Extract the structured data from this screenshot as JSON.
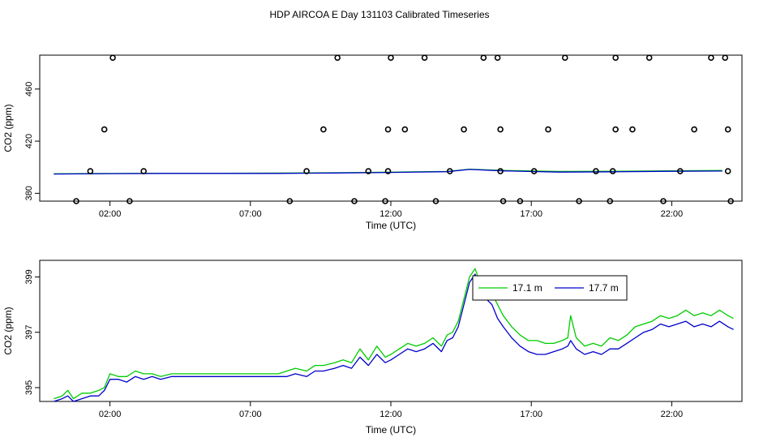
{
  "figure": {
    "title": "HDP AIRCOA E  Day 131103  Calibrated Timeseries"
  },
  "chart_data": [
    {
      "type": "line",
      "panel": "top",
      "xlabel": "Time (UTC)",
      "ylabel": "CO2 (ppm)",
      "x_ticks": [
        "02:00",
        "07:00",
        "12:00",
        "17:00",
        "22:00"
      ],
      "x_tick_hours": [
        2,
        7,
        12,
        17,
        22
      ],
      "y_ticks": [
        380,
        420,
        460
      ],
      "xlim": [
        -0.5,
        24.5
      ],
      "ylim": [
        374,
        486
      ],
      "grid": false,
      "series": [
        {
          "color": "#00cc00",
          "points": [
            [
              0,
              395
            ],
            [
              2,
              395.2
            ],
            [
              4,
              395.4
            ],
            [
              6,
              395.4
            ],
            [
              8,
              395.5
            ],
            [
              10,
              395.8
            ],
            [
              12,
              396.2
            ],
            [
              14,
              396.8
            ],
            [
              14.8,
              398.5
            ],
            [
              16,
              397.5
            ],
            [
              18,
              396.8
            ],
            [
              20,
              396.9
            ],
            [
              22,
              397.2
            ],
            [
              23.8,
              397.5
            ]
          ]
        },
        {
          "color": "#0000cc",
          "points": [
            [
              0,
              394.8
            ],
            [
              2,
              395.1
            ],
            [
              4,
              395.3
            ],
            [
              6,
              395.3
            ],
            [
              8,
              395.3
            ],
            [
              10,
              395.6
            ],
            [
              12,
              396.0
            ],
            [
              14,
              396.6
            ],
            [
              14.8,
              398.3
            ],
            [
              16,
              397.2
            ],
            [
              18,
              396.3
            ],
            [
              20,
              396.5
            ],
            [
              22,
              396.9
            ],
            [
              23.8,
              397.1
            ]
          ]
        },
        {
          "kind": "markers",
          "color": "#000000",
          "points": [
            [
              0.8,
              374
            ],
            [
              1.3,
              397
            ],
            [
              1.8,
              429
            ],
            [
              2.1,
              484
            ],
            [
              2.7,
              374
            ],
            [
              3.2,
              397
            ],
            [
              8.4,
              374
            ],
            [
              9.0,
              397
            ],
            [
              9.6,
              429
            ],
            [
              10.1,
              484
            ],
            [
              10.7,
              374
            ],
            [
              11.2,
              397
            ],
            [
              11.8,
              374
            ],
            [
              11.9,
              397
            ],
            [
              11.9,
              429
            ],
            [
              12.0,
              484
            ],
            [
              12.5,
              429
            ],
            [
              13.2,
              484
            ],
            [
              13.6,
              374
            ],
            [
              14.1,
              397
            ],
            [
              14.6,
              429
            ],
            [
              15.3,
              484
            ],
            [
              15.8,
              484
            ],
            [
              15.9,
              429
            ],
            [
              15.9,
              397
            ],
            [
              16.0,
              374
            ],
            [
              16.6,
              374
            ],
            [
              17.1,
              397
            ],
            [
              17.6,
              429
            ],
            [
              18.2,
              484
            ],
            [
              18.7,
              374
            ],
            [
              19.3,
              397
            ],
            [
              19.8,
              374
            ],
            [
              19.9,
              397
            ],
            [
              20.0,
              429
            ],
            [
              20.0,
              484
            ],
            [
              20.6,
              429
            ],
            [
              21.2,
              484
            ],
            [
              21.7,
              374
            ],
            [
              22.3,
              397
            ],
            [
              22.8,
              429
            ],
            [
              23.4,
              484
            ],
            [
              23.9,
              484
            ],
            [
              24.0,
              429
            ],
            [
              24.0,
              397
            ],
            [
              24.1,
              374
            ]
          ]
        }
      ]
    },
    {
      "type": "line",
      "panel": "bottom",
      "xlabel": "Time (UTC)",
      "ylabel": "CO2 (ppm)",
      "x_ticks": [
        "02:00",
        "07:00",
        "12:00",
        "17:00",
        "22:00"
      ],
      "x_tick_hours": [
        2,
        7,
        12,
        17,
        22
      ],
      "y_ticks": [
        395,
        397,
        399
      ],
      "xlim": [
        -0.5,
        24.5
      ],
      "ylim": [
        394.5,
        399.6
      ],
      "grid": false,
      "legend": {
        "placement": "top-right",
        "entries": [
          "17.1 m",
          "17.7 m"
        ]
      },
      "series": [
        {
          "name": "17.1 m",
          "color": "#00cc00",
          "points": [
            [
              0.0,
              394.6
            ],
            [
              0.3,
              394.7
            ],
            [
              0.5,
              394.9
            ],
            [
              0.7,
              394.6
            ],
            [
              1.0,
              394.8
            ],
            [
              1.3,
              394.8
            ],
            [
              1.6,
              394.9
            ],
            [
              1.8,
              395.0
            ],
            [
              2.0,
              395.5
            ],
            [
              2.3,
              395.4
            ],
            [
              2.6,
              395.4
            ],
            [
              2.9,
              395.6
            ],
            [
              3.2,
              395.5
            ],
            [
              3.5,
              395.5
            ],
            [
              3.8,
              395.4
            ],
            [
              4.2,
              395.5
            ],
            [
              6.0,
              395.5
            ],
            [
              8.0,
              395.5
            ],
            [
              8.3,
              395.6
            ],
            [
              8.6,
              395.7
            ],
            [
              9.0,
              395.6
            ],
            [
              9.3,
              395.8
            ],
            [
              9.6,
              395.8
            ],
            [
              10.0,
              395.9
            ],
            [
              10.3,
              396.0
            ],
            [
              10.6,
              395.9
            ],
            [
              10.9,
              396.4
            ],
            [
              11.2,
              396.0
            ],
            [
              11.5,
              396.5
            ],
            [
              11.8,
              396.1
            ],
            [
              12.0,
              396.2
            ],
            [
              12.3,
              396.4
            ],
            [
              12.6,
              396.6
            ],
            [
              12.9,
              396.5
            ],
            [
              13.2,
              396.6
            ],
            [
              13.5,
              396.8
            ],
            [
              13.8,
              396.5
            ],
            [
              14.0,
              396.9
            ],
            [
              14.2,
              397.0
            ],
            [
              14.4,
              397.4
            ],
            [
              14.6,
              398.2
            ],
            [
              14.8,
              399.0
            ],
            [
              15.0,
              399.3
            ],
            [
              15.2,
              398.7
            ],
            [
              15.4,
              398.6
            ],
            [
              15.6,
              398.4
            ],
            [
              15.8,
              398.0
            ],
            [
              16.0,
              397.6
            ],
            [
              16.3,
              397.2
            ],
            [
              16.6,
              396.9
            ],
            [
              16.9,
              396.7
            ],
            [
              17.2,
              396.7
            ],
            [
              17.5,
              396.6
            ],
            [
              17.8,
              396.6
            ],
            [
              18.1,
              396.7
            ],
            [
              18.3,
              396.8
            ],
            [
              18.4,
              397.6
            ],
            [
              18.6,
              396.8
            ],
            [
              18.9,
              396.5
            ],
            [
              19.2,
              396.6
            ],
            [
              19.5,
              396.5
            ],
            [
              19.8,
              396.8
            ],
            [
              20.1,
              396.7
            ],
            [
              20.4,
              396.9
            ],
            [
              20.7,
              397.2
            ],
            [
              21.0,
              397.3
            ],
            [
              21.3,
              397.4
            ],
            [
              21.6,
              397.6
            ],
            [
              21.9,
              397.5
            ],
            [
              22.2,
              397.6
            ],
            [
              22.5,
              397.8
            ],
            [
              22.8,
              397.6
            ],
            [
              23.1,
              397.7
            ],
            [
              23.4,
              397.6
            ],
            [
              23.7,
              397.8
            ],
            [
              24.0,
              397.6
            ],
            [
              24.2,
              397.5
            ]
          ]
        },
        {
          "name": "17.7 m",
          "color": "#0000cc",
          "points": [
            [
              0.0,
              394.5
            ],
            [
              0.3,
              394.6
            ],
            [
              0.5,
              394.7
            ],
            [
              0.7,
              394.5
            ],
            [
              1.0,
              394.6
            ],
            [
              1.3,
              394.7
            ],
            [
              1.6,
              394.7
            ],
            [
              1.8,
              394.9
            ],
            [
              2.0,
              395.3
            ],
            [
              2.3,
              395.3
            ],
            [
              2.6,
              395.2
            ],
            [
              2.9,
              395.4
            ],
            [
              3.2,
              395.3
            ],
            [
              3.5,
              395.4
            ],
            [
              3.8,
              395.3
            ],
            [
              4.2,
              395.4
            ],
            [
              6.0,
              395.4
            ],
            [
              8.0,
              395.4
            ],
            [
              8.3,
              395.4
            ],
            [
              8.6,
              395.5
            ],
            [
              9.0,
              395.4
            ],
            [
              9.3,
              395.6
            ],
            [
              9.6,
              395.6
            ],
            [
              10.0,
              395.7
            ],
            [
              10.3,
              395.8
            ],
            [
              10.6,
              395.7
            ],
            [
              10.9,
              396.1
            ],
            [
              11.2,
              395.8
            ],
            [
              11.5,
              396.2
            ],
            [
              11.8,
              395.9
            ],
            [
              12.0,
              396.0
            ],
            [
              12.3,
              396.2
            ],
            [
              12.6,
              396.4
            ],
            [
              12.9,
              396.3
            ],
            [
              13.2,
              396.4
            ],
            [
              13.5,
              396.6
            ],
            [
              13.8,
              396.3
            ],
            [
              14.0,
              396.7
            ],
            [
              14.2,
              396.8
            ],
            [
              14.4,
              397.2
            ],
            [
              14.6,
              398.0
            ],
            [
              14.8,
              398.8
            ],
            [
              15.0,
              399.1
            ],
            [
              15.2,
              398.4
            ],
            [
              15.4,
              398.2
            ],
            [
              15.6,
              398.0
            ],
            [
              15.8,
              397.5
            ],
            [
              16.0,
              397.2
            ],
            [
              16.3,
              396.8
            ],
            [
              16.6,
              396.5
            ],
            [
              16.9,
              396.3
            ],
            [
              17.2,
              396.2
            ],
            [
              17.5,
              396.2
            ],
            [
              17.8,
              396.3
            ],
            [
              18.1,
              396.4
            ],
            [
              18.3,
              396.5
            ],
            [
              18.4,
              396.7
            ],
            [
              18.6,
              396.4
            ],
            [
              18.9,
              396.2
            ],
            [
              19.2,
              396.3
            ],
            [
              19.5,
              396.2
            ],
            [
              19.8,
              396.4
            ],
            [
              20.1,
              396.4
            ],
            [
              20.4,
              396.6
            ],
            [
              20.7,
              396.8
            ],
            [
              21.0,
              397.0
            ],
            [
              21.3,
              397.1
            ],
            [
              21.6,
              397.3
            ],
            [
              21.9,
              397.2
            ],
            [
              22.2,
              397.3
            ],
            [
              22.5,
              397.4
            ],
            [
              22.8,
              397.2
            ],
            [
              23.1,
              397.3
            ],
            [
              23.4,
              397.2
            ],
            [
              23.7,
              397.4
            ],
            [
              24.0,
              397.2
            ],
            [
              24.2,
              397.1
            ]
          ]
        }
      ]
    }
  ]
}
